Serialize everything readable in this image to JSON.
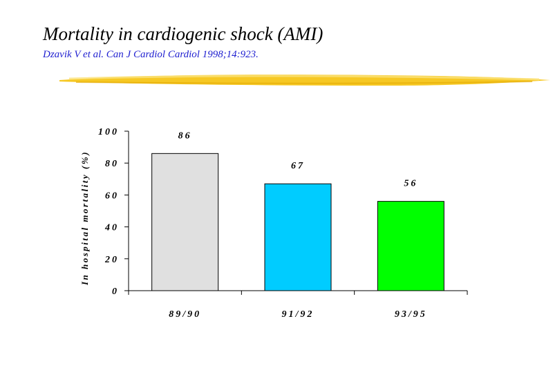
{
  "slide": {
    "title": "Mortality in cardiogenic shock (AMI)",
    "citation": "Dzavik V et al. Can J Cardiol Cardiol 1998;14:923."
  },
  "colors": {
    "highlighter": "#f5c518",
    "citation": "#1f1fd0"
  },
  "chart_data": {
    "type": "bar",
    "title": "",
    "xlabel": "",
    "ylabel": "In hospital mortality (%)",
    "categories": [
      "89/90",
      "91/92",
      "93/95"
    ],
    "values": [
      86,
      67,
      56
    ],
    "data_labels": [
      "86",
      "67",
      "56"
    ],
    "bar_colors": [
      "#e0e0e0",
      "#00ccff",
      "#00ff00"
    ],
    "ylim": [
      0,
      100
    ],
    "yticks": [
      "0",
      "20",
      "40",
      "60",
      "80",
      "100"
    ],
    "grid": false,
    "legend": "none"
  }
}
